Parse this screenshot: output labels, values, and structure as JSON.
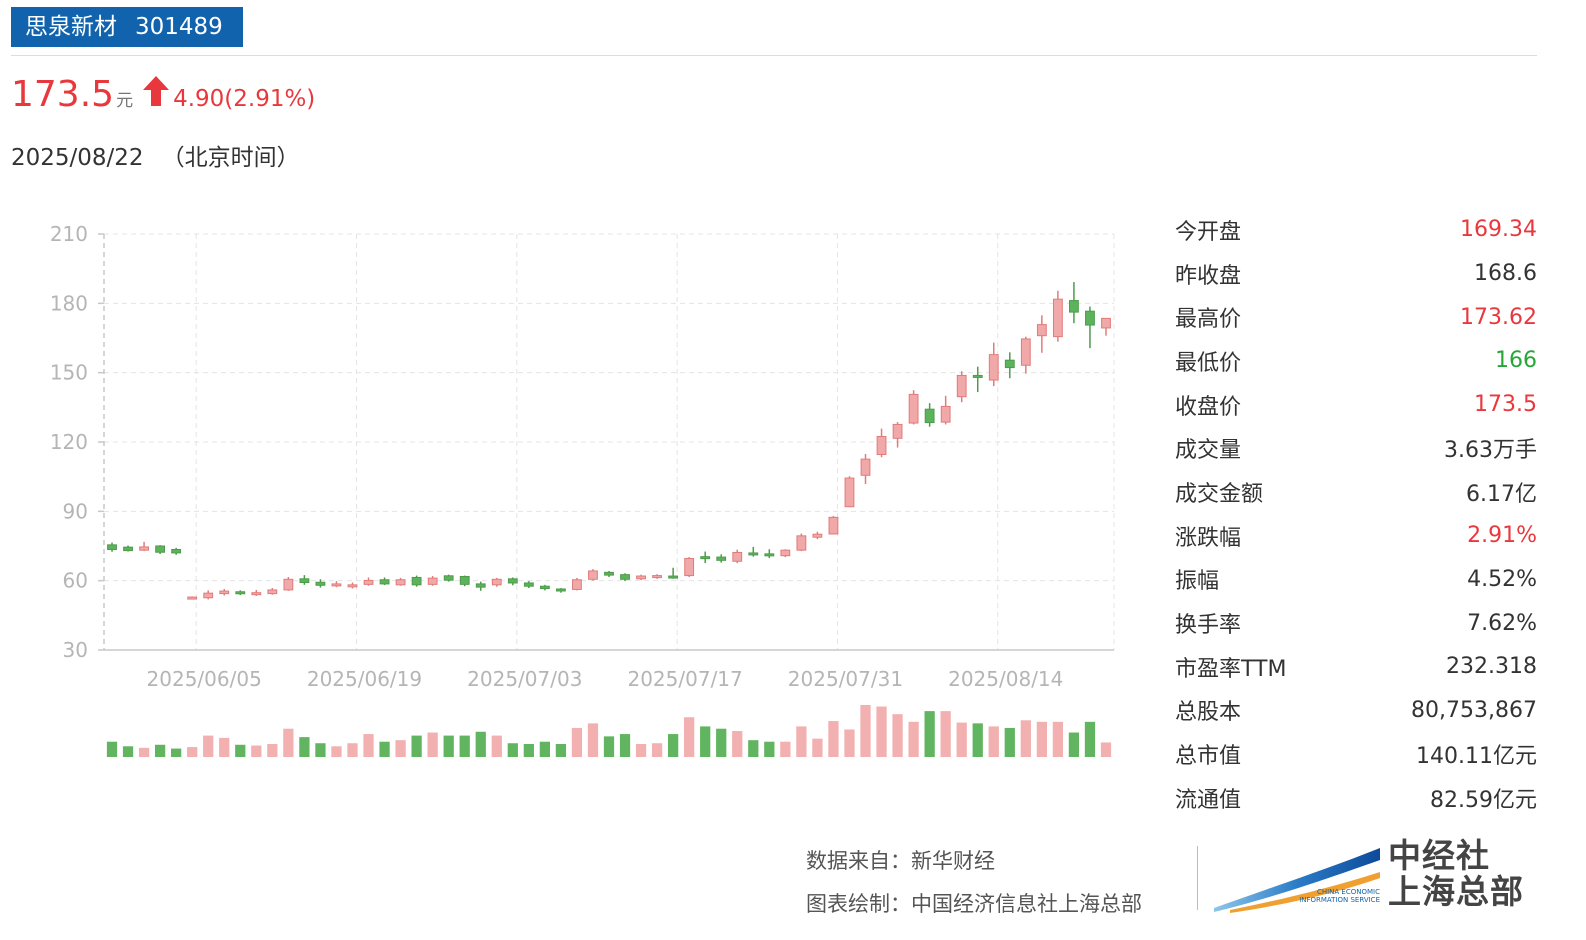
{
  "header": {
    "name": "思泉新材",
    "code": "301489"
  },
  "quote": {
    "price": "173.5",
    "unit": "元",
    "change": "4.90(2.91%)",
    "date": "2025/08/22",
    "timezone": "（北京时间）"
  },
  "colors": {
    "up": "#e8383d",
    "down": "#27a539",
    "candle_up": "#f0a8a8",
    "candle_up_stroke": "#e27b7b",
    "candle_down": "#5db35b",
    "candle_down_stroke": "#4d9b4b",
    "vol_up": "#f2b0b0",
    "vol_down": "#62b560",
    "brand": "#1163ad"
  },
  "stats": [
    {
      "label": "今开盘",
      "value": "169.34",
      "tone": "up"
    },
    {
      "label": "昨收盘",
      "value": "168.6",
      "tone": "neutral"
    },
    {
      "label": "最高价",
      "value": "173.62",
      "tone": "up"
    },
    {
      "label": "最低价",
      "value": "166",
      "tone": "down"
    },
    {
      "label": "收盘价",
      "value": "173.5",
      "tone": "up"
    },
    {
      "label": "成交量",
      "value": "3.63万手",
      "tone": "neutral"
    },
    {
      "label": "成交金额",
      "value": "6.17亿",
      "tone": "neutral"
    },
    {
      "label": "涨跌幅",
      "value": "2.91%",
      "tone": "up"
    },
    {
      "label": "振幅",
      "value": "4.52%",
      "tone": "neutral"
    },
    {
      "label": "换手率",
      "value": "7.62%",
      "tone": "neutral"
    },
    {
      "label": "市盈率TTM",
      "value": "232.318",
      "tone": "neutral"
    },
    {
      "label": "总股本",
      "value": "80,753,867",
      "tone": "neutral"
    },
    {
      "label": "总市值",
      "value": "140.11亿元",
      "tone": "neutral"
    },
    {
      "label": "流通值",
      "value": "82.59亿元",
      "tone": "neutral"
    }
  ],
  "footer": {
    "source": "数据来自：新华财经",
    "credit": "图表绘制：中国经济信息社上海总部"
  },
  "logo": {
    "cn_line1": "中经社",
    "cn_line2": "上海总部",
    "en_line1": "CHINA ECONOMIC",
    "en_line2": "INFORMATION SERVICE"
  },
  "chart_data": {
    "type": "candlestick",
    "yticks": [
      "210",
      "180",
      "150",
      "120",
      "90",
      "60",
      "30"
    ],
    "ylim": [
      30,
      210
    ],
    "xticks": [
      {
        "label": "2025/06/05",
        "index": 6
      },
      {
        "label": "2025/06/19",
        "index": 16
      },
      {
        "label": "2025/07/03",
        "index": 26
      },
      {
        "label": "2025/07/17",
        "index": 36
      },
      {
        "label": "2025/07/31",
        "index": 46
      },
      {
        "label": "2025/08/14",
        "index": 56
      }
    ],
    "grid": true,
    "candles": [
      {
        "o": 75.5,
        "c": 73.5,
        "h": 76.5,
        "l": 72.5,
        "v": 0.2
      },
      {
        "o": 74.5,
        "c": 73.0,
        "h": 75.2,
        "l": 72.6,
        "v": 0.14
      },
      {
        "o": 73.2,
        "c": 74.6,
        "h": 76.8,
        "l": 72.8,
        "v": 0.12
      },
      {
        "o": 75.0,
        "c": 72.3,
        "h": 75.4,
        "l": 71.5,
        "v": 0.16
      },
      {
        "o": 73.5,
        "c": 72.0,
        "h": 74.2,
        "l": 71.2,
        "v": 0.11
      },
      {
        "o": 52.3,
        "c": 52.9,
        "h": 53.2,
        "l": 51.9,
        "v": 0.13
      },
      {
        "o": 52.6,
        "c": 54.6,
        "h": 55.8,
        "l": 51.9,
        "v": 0.28
      },
      {
        "o": 54.4,
        "c": 55.5,
        "h": 56.4,
        "l": 53.6,
        "v": 0.25
      },
      {
        "o": 55.2,
        "c": 54.6,
        "h": 55.8,
        "l": 53.8,
        "v": 0.16
      },
      {
        "o": 54.6,
        "c": 54.8,
        "h": 56.0,
        "l": 53.4,
        "v": 0.15
      },
      {
        "o": 54.4,
        "c": 56.0,
        "h": 56.8,
        "l": 53.9,
        "v": 0.17
      },
      {
        "o": 56.0,
        "c": 60.6,
        "h": 61.6,
        "l": 55.6,
        "v": 0.37
      },
      {
        "o": 60.8,
        "c": 59.2,
        "h": 62.4,
        "l": 58.2,
        "v": 0.26
      },
      {
        "o": 59.3,
        "c": 58.0,
        "h": 60.6,
        "l": 57.0,
        "v": 0.18
      },
      {
        "o": 58.0,
        "c": 58.6,
        "h": 59.8,
        "l": 57.2,
        "v": 0.14
      },
      {
        "o": 57.4,
        "c": 58.2,
        "h": 59.2,
        "l": 56.6,
        "v": 0.18
      },
      {
        "o": 58.4,
        "c": 60.1,
        "h": 61.4,
        "l": 57.8,
        "v": 0.3
      },
      {
        "o": 60.4,
        "c": 58.6,
        "h": 61.4,
        "l": 58.1,
        "v": 0.2
      },
      {
        "o": 58.2,
        "c": 60.4,
        "h": 61.2,
        "l": 57.8,
        "v": 0.22
      },
      {
        "o": 61.4,
        "c": 58.2,
        "h": 62.2,
        "l": 57.4,
        "v": 0.28
      },
      {
        "o": 58.4,
        "c": 61.1,
        "h": 62.0,
        "l": 57.8,
        "v": 0.32
      },
      {
        "o": 62.1,
        "c": 60.2,
        "h": 62.6,
        "l": 59.6,
        "v": 0.28
      },
      {
        "o": 61.8,
        "c": 58.4,
        "h": 62.2,
        "l": 57.6,
        "v": 0.28
      },
      {
        "o": 58.6,
        "c": 57.2,
        "h": 59.6,
        "l": 55.6,
        "v": 0.33
      },
      {
        "o": 58.2,
        "c": 60.6,
        "h": 61.2,
        "l": 57.4,
        "v": 0.28
      },
      {
        "o": 60.8,
        "c": 59.0,
        "h": 61.4,
        "l": 58.0,
        "v": 0.18
      },
      {
        "o": 59.0,
        "c": 57.6,
        "h": 59.8,
        "l": 56.8,
        "v": 0.17
      },
      {
        "o": 57.6,
        "c": 56.6,
        "h": 58.2,
        "l": 55.8,
        "v": 0.2
      },
      {
        "o": 56.4,
        "c": 55.6,
        "h": 56.8,
        "l": 54.8,
        "v": 0.17
      },
      {
        "o": 56.2,
        "c": 60.4,
        "h": 61.2,
        "l": 55.8,
        "v": 0.38
      },
      {
        "o": 60.6,
        "c": 64.2,
        "h": 65.0,
        "l": 60.0,
        "v": 0.44
      },
      {
        "o": 63.6,
        "c": 62.4,
        "h": 64.2,
        "l": 61.6,
        "v": 0.27
      },
      {
        "o": 62.6,
        "c": 60.6,
        "h": 63.2,
        "l": 59.8,
        "v": 0.3
      },
      {
        "o": 60.8,
        "c": 62.0,
        "h": 62.6,
        "l": 60.2,
        "v": 0.17
      },
      {
        "o": 61.4,
        "c": 62.2,
        "h": 62.8,
        "l": 60.8,
        "v": 0.18
      },
      {
        "o": 62.0,
        "c": 61.6,
        "h": 65.6,
        "l": 60.8,
        "v": 0.3
      },
      {
        "o": 62.2,
        "c": 69.6,
        "h": 70.2,
        "l": 61.6,
        "v": 0.52
      },
      {
        "o": 70.4,
        "c": 69.8,
        "h": 72.6,
        "l": 67.6,
        "v": 0.4
      },
      {
        "o": 70.2,
        "c": 68.8,
        "h": 71.4,
        "l": 67.8,
        "v": 0.37
      },
      {
        "o": 68.4,
        "c": 72.2,
        "h": 73.4,
        "l": 67.6,
        "v": 0.34
      },
      {
        "o": 72.0,
        "c": 71.2,
        "h": 74.6,
        "l": 70.4,
        "v": 0.22
      },
      {
        "o": 71.6,
        "c": 70.8,
        "h": 73.6,
        "l": 69.8,
        "v": 0.2
      },
      {
        "o": 70.8,
        "c": 73.2,
        "h": 73.6,
        "l": 70.2,
        "v": 0.2
      },
      {
        "o": 73.2,
        "c": 79.4,
        "h": 80.4,
        "l": 72.8,
        "v": 0.4
      },
      {
        "o": 78.8,
        "c": 80.1,
        "h": 81.2,
        "l": 78.0,
        "v": 0.24
      },
      {
        "o": 80.2,
        "c": 87.4,
        "h": 88.0,
        "l": 80.0,
        "v": 0.47
      },
      {
        "o": 92.0,
        "c": 104.4,
        "h": 105.2,
        "l": 91.8,
        "v": 0.36
      },
      {
        "o": 105.6,
        "c": 112.6,
        "h": 114.8,
        "l": 101.8,
        "v": 0.68
      },
      {
        "o": 114.6,
        "c": 122.4,
        "h": 125.8,
        "l": 113.4,
        "v": 0.66
      },
      {
        "o": 121.6,
        "c": 127.6,
        "h": 128.6,
        "l": 117.6,
        "v": 0.56
      },
      {
        "o": 128.2,
        "c": 140.6,
        "h": 142.4,
        "l": 127.6,
        "v": 0.46
      },
      {
        "o": 134.2,
        "c": 128.4,
        "h": 136.8,
        "l": 126.6,
        "v": 0.6
      },
      {
        "o": 128.6,
        "c": 135.4,
        "h": 140.0,
        "l": 127.6,
        "v": 0.6
      },
      {
        "o": 139.6,
        "c": 148.8,
        "h": 150.6,
        "l": 137.2,
        "v": 0.45
      },
      {
        "o": 148.8,
        "c": 148.4,
        "h": 152.6,
        "l": 141.6,
        "v": 0.44
      },
      {
        "o": 146.8,
        "c": 157.8,
        "h": 163.0,
        "l": 144.2,
        "v": 0.4
      },
      {
        "o": 155.4,
        "c": 152.2,
        "h": 158.8,
        "l": 147.6,
        "v": 0.38
      },
      {
        "o": 153.2,
        "c": 164.6,
        "h": 165.6,
        "l": 149.6,
        "v": 0.48
      },
      {
        "o": 166.0,
        "c": 170.8,
        "h": 174.8,
        "l": 158.6,
        "v": 0.46
      },
      {
        "o": 165.6,
        "c": 181.8,
        "h": 185.4,
        "l": 163.4,
        "v": 0.46
      },
      {
        "o": 181.2,
        "c": 176.2,
        "h": 189.2,
        "l": 171.4,
        "v": 0.32
      },
      {
        "o": 176.6,
        "c": 170.6,
        "h": 178.6,
        "l": 160.6,
        "v": 0.46
      },
      {
        "o": 169.34,
        "c": 173.5,
        "h": 173.62,
        "l": 166.0,
        "v": 0.19
      }
    ]
  }
}
